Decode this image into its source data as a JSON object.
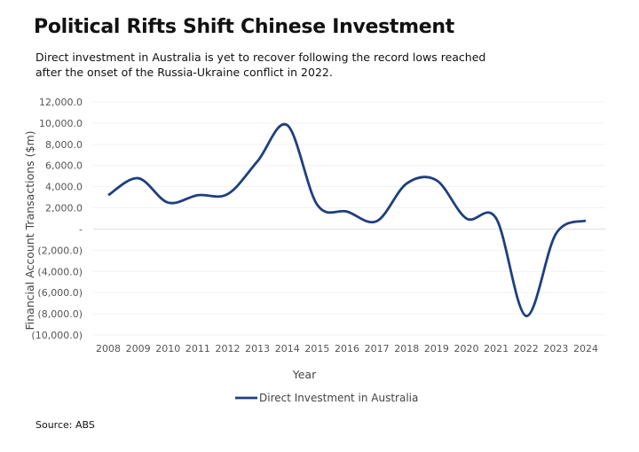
{
  "title": "Political Rifts Shift Chinese Investment",
  "subtitle": "Direct investment in Australia is yet to recover following the record lows reached after the onset of the Russia-Ukraine conflict in 2022.",
  "source": "Source: ABS",
  "chart_data": {
    "type": "line",
    "xlabel": "Year",
    "ylabel": "Financial Account Transactions ($m)",
    "ylim": [
      -10000,
      12000
    ],
    "grid": true,
    "legend": "bottom",
    "yticks": [
      "12,000.0",
      "10,000.0",
      "8,000.0",
      "6,000.0",
      "4,000.0",
      "2,000.0",
      "-",
      "(2,000.0)",
      "(4,000.0)",
      "(6,000.0)",
      "(8,000.0)",
      "(10,000.0)"
    ],
    "categories": [
      "2008",
      "2009",
      "2010",
      "2011",
      "2012",
      "2013",
      "2014",
      "2015",
      "2016",
      "2017",
      "2018",
      "2019",
      "2020",
      "2021",
      "2022",
      "2023",
      "2024"
    ],
    "series": [
      {
        "name": "Direct Investment in Australia",
        "color": "#1f3f7f",
        "values": [
          3200,
          4800,
          2500,
          3200,
          3300,
          6400,
          9800,
          2300,
          1650,
          750,
          4300,
          4600,
          1000,
          1000,
          -8200,
          -450,
          800
        ]
      }
    ]
  }
}
